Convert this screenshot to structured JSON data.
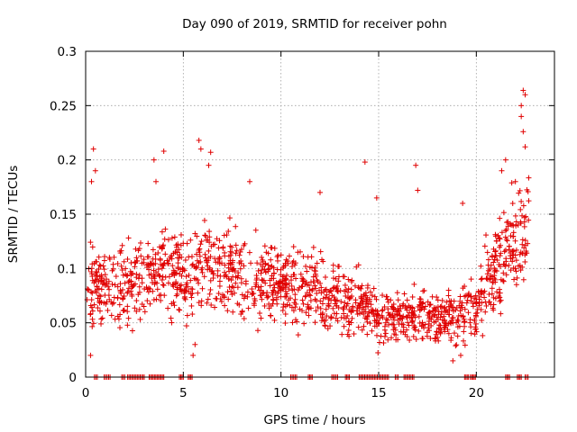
{
  "chart_data": {
    "type": "scatter",
    "title": "Day 090 of 2019, SRMTID for receiver pohn",
    "xlabel": "GPS time / hours",
    "ylabel": "SRMTID / TECUs",
    "xlim": [
      0,
      24
    ],
    "ylim": [
      0,
      0.3
    ],
    "x_ticks": [
      0,
      5,
      10,
      15,
      20
    ],
    "x_tick_labels": [
      "0",
      "5",
      "10",
      "15",
      "20"
    ],
    "y_ticks": [
      0,
      0.05,
      0.1,
      0.15,
      0.2,
      0.25,
      0.3
    ],
    "y_tick_labels": [
      "0",
      "0.05",
      "0.1",
      "0.15",
      "0.2",
      "0.25",
      "0.3"
    ],
    "grid": true,
    "marker": "+",
    "color": "#e00000",
    "series": [
      {
        "name": "SRMTID",
        "trend": [
          [
            0.0,
            0.085
          ],
          [
            1.0,
            0.085
          ],
          [
            2.0,
            0.08
          ],
          [
            3.0,
            0.095
          ],
          [
            4.0,
            0.1
          ],
          [
            5.0,
            0.09
          ],
          [
            6.0,
            0.11
          ],
          [
            7.0,
            0.1
          ],
          [
            8.0,
            0.095
          ],
          [
            9.0,
            0.085
          ],
          [
            10.0,
            0.09
          ],
          [
            11.0,
            0.085
          ],
          [
            12.0,
            0.075
          ],
          [
            13.0,
            0.07
          ],
          [
            14.0,
            0.07
          ],
          [
            15.0,
            0.055
          ],
          [
            16.0,
            0.055
          ],
          [
            17.0,
            0.06
          ],
          [
            18.0,
            0.055
          ],
          [
            19.0,
            0.055
          ],
          [
            20.0,
            0.065
          ],
          [
            21.0,
            0.1
          ],
          [
            22.0,
            0.12
          ],
          [
            22.8,
            0.15
          ]
        ],
        "highlights": [
          [
            0.4,
            0.21
          ],
          [
            0.5,
            0.19
          ],
          [
            0.3,
            0.18
          ],
          [
            3.5,
            0.2
          ],
          [
            3.6,
            0.18
          ],
          [
            4.0,
            0.208
          ],
          [
            5.8,
            0.218
          ],
          [
            5.9,
            0.21
          ],
          [
            6.4,
            0.207
          ],
          [
            6.3,
            0.195
          ],
          [
            8.4,
            0.18
          ],
          [
            12.0,
            0.17
          ],
          [
            14.3,
            0.198
          ],
          [
            14.9,
            0.165
          ],
          [
            16.9,
            0.195
          ],
          [
            17.0,
            0.172
          ],
          [
            19.3,
            0.16
          ],
          [
            21.3,
            0.19
          ],
          [
            22.3,
            0.25
          ],
          [
            22.4,
            0.264
          ],
          [
            22.5,
            0.26
          ],
          [
            22.3,
            0.24
          ],
          [
            22.4,
            0.226
          ],
          [
            22.5,
            0.212
          ],
          [
            21.5,
            0.2
          ],
          [
            22.0,
            0.18
          ],
          [
            0.25,
            0.02
          ],
          [
            5.5,
            0.02
          ],
          [
            5.6,
            0.03
          ],
          [
            18.8,
            0.015
          ],
          [
            19.2,
            0.02
          ]
        ],
        "zero_x_ranges": [
          [
            0.45,
            0.6
          ],
          [
            0.95,
            1.25
          ],
          [
            1.85,
            2.0
          ],
          [
            2.15,
            3.0
          ],
          [
            3.25,
            4.0
          ],
          [
            4.8,
            5.0
          ],
          [
            5.25,
            5.45
          ],
          [
            10.5,
            10.8
          ],
          [
            11.4,
            11.6
          ],
          [
            12.6,
            12.9
          ],
          [
            13.3,
            13.5
          ],
          [
            14.0,
            15.5
          ],
          [
            15.85,
            16.0
          ],
          [
            16.3,
            16.8
          ],
          [
            19.4,
            19.6
          ],
          [
            19.7,
            19.95
          ],
          [
            21.5,
            21.7
          ],
          [
            22.1,
            22.3
          ],
          [
            22.5,
            22.65
          ]
        ],
        "point_count": 1500
      }
    ]
  }
}
